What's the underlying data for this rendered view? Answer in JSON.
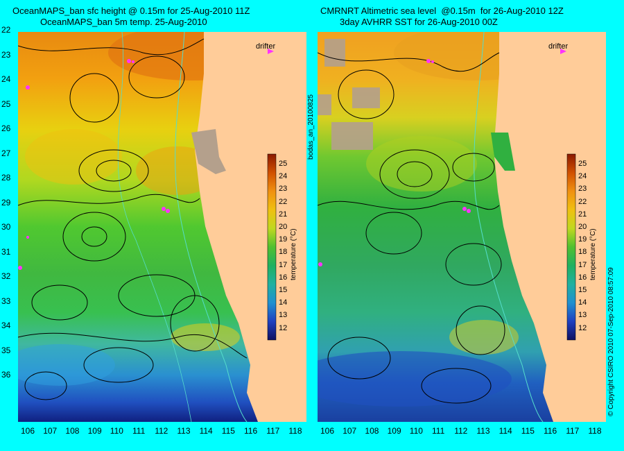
{
  "left_panel": {
    "title_line1": "OceanMAPS_ban sfc height @ 0.15m for 25-Aug-2010 11Z",
    "title_line2": "OceanMAPS_ban 5m temp. 25-Aug-2010",
    "drifter_label": "drifter",
    "colorbar_label": "temperature (°C)"
  },
  "right_panel": {
    "title_line1": "CMRNRT Altimetric sea level  @0.15m  for 26-Aug-2010 12Z",
    "title_line2": "3day AVHRR SST for 26-Aug-2010 00Z",
    "drifter_label": "drifter",
    "colorbar_label": "temperature (°C)"
  },
  "middle_side_text": "bodas_an_20100825",
  "right_side_text": "© Copyright CSIRO 2010   07-Sep-2010 08:57:09",
  "latitudes": [
    "22",
    "23",
    "24",
    "25",
    "26",
    "27",
    "28",
    "29",
    "30",
    "31",
    "32",
    "33",
    "34",
    "35",
    "36"
  ],
  "longitudes": [
    "106",
    "107",
    "108",
    "109",
    "110",
    "111",
    "112",
    "113",
    "114",
    "115",
    "116",
    "117",
    "118"
  ],
  "colorbar_ticks": [
    "25",
    "24",
    "23",
    "22",
    "21",
    "20",
    "19",
    "18",
    "17",
    "16",
    "15",
    "14",
    "13",
    "12"
  ],
  "colors": {
    "background": "#00ffff",
    "land": "#ffcc99",
    "cloud": "#b4a08c",
    "drifter": "#ff33ff",
    "contour": "#000000",
    "isobath": "#55ddcc"
  }
}
